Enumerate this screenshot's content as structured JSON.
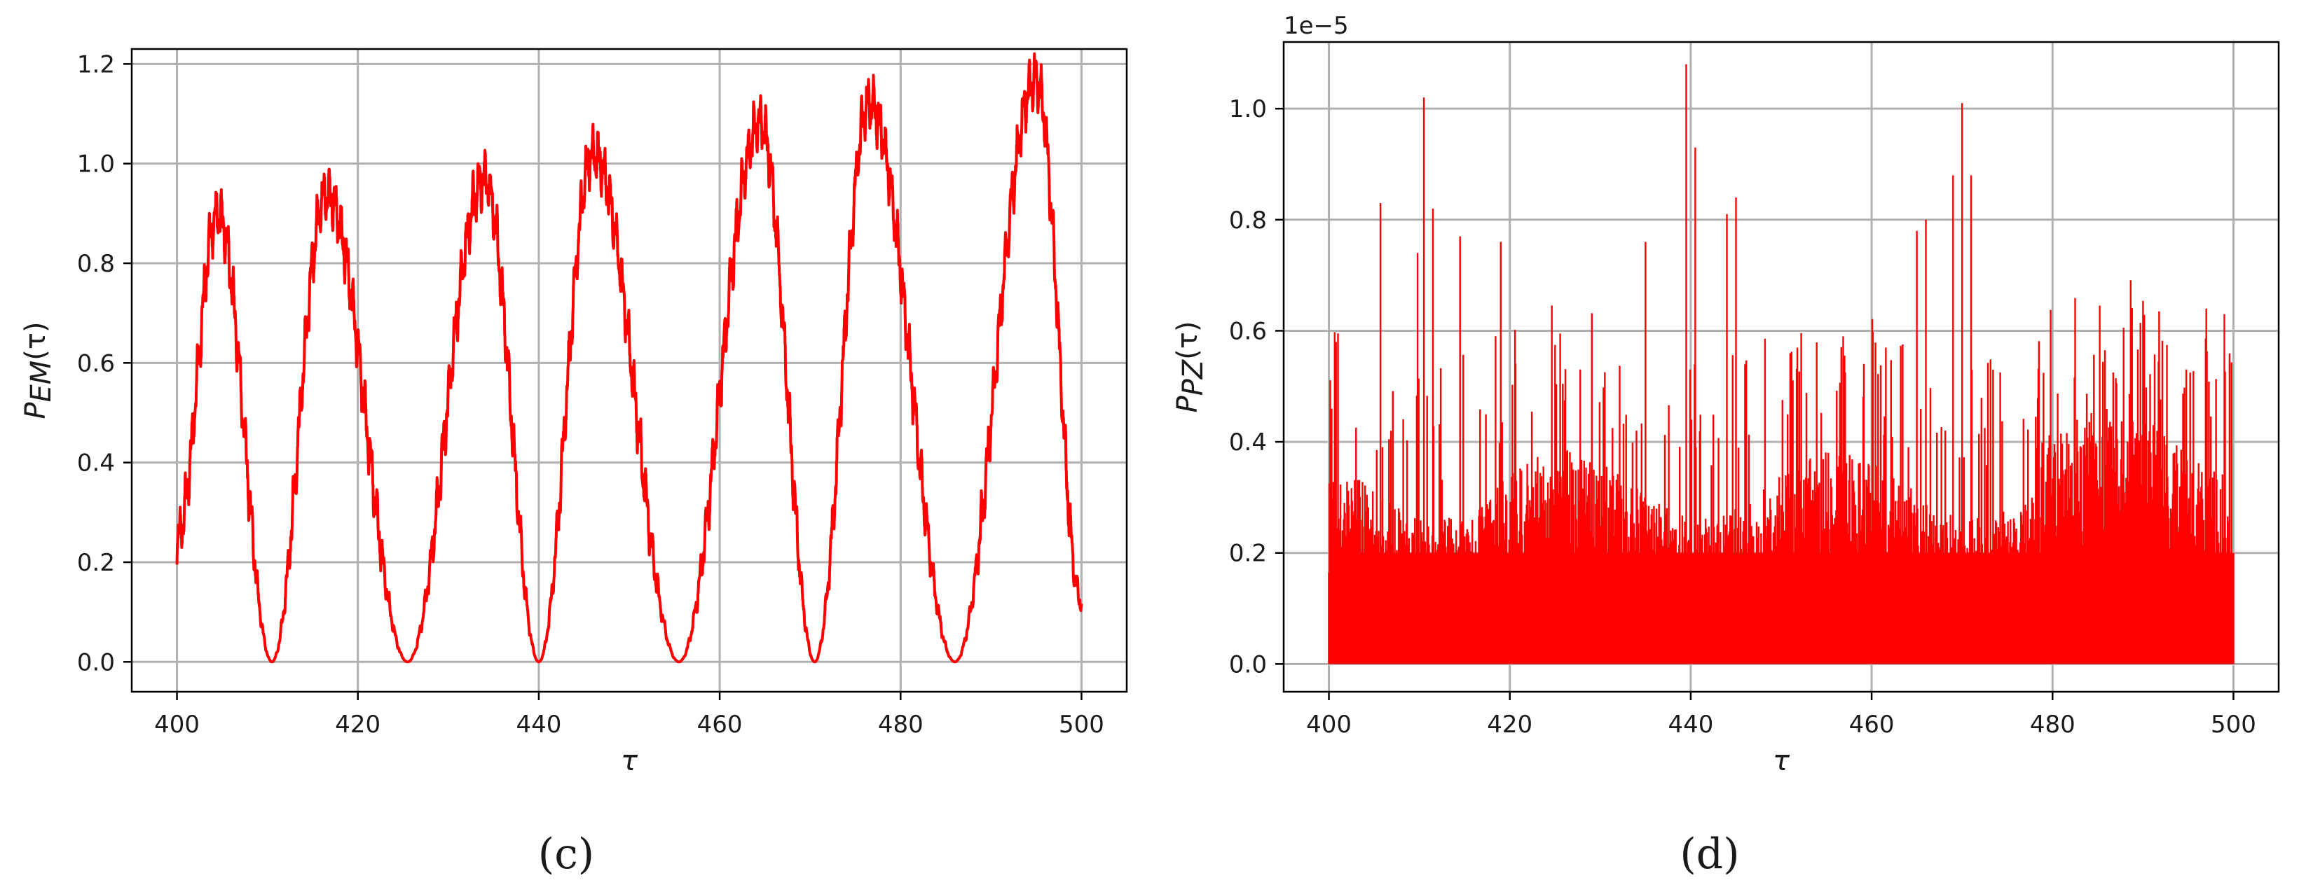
{
  "chart_data": [
    {
      "id": "c",
      "type": "line",
      "panel_label": "(c)",
      "xlabel": "τ",
      "ylabel": "P",
      "ylabel_sub": "EM",
      "ylabel_arg": "(τ)",
      "xlim": [
        395,
        505
      ],
      "ylim": [
        -0.06,
        1.23
      ],
      "xticks": [
        400,
        420,
        440,
        460,
        480,
        500
      ],
      "yticks": [
        0.0,
        0.2,
        0.4,
        0.6,
        0.8,
        1.0,
        1.2
      ],
      "xtick_labels": [
        "400",
        "420",
        "440",
        "460",
        "480",
        "500"
      ],
      "ytick_labels": [
        "0.0",
        "0.2",
        "0.4",
        "0.6",
        "0.8",
        "1.0",
        "1.2"
      ],
      "grid": true,
      "color": "#ff0000",
      "peaks": [
        {
          "x": 404.5,
          "y": 0.9
        },
        {
          "x": 416.5,
          "y": 0.94
        },
        {
          "x": 434.0,
          "y": 0.97
        },
        {
          "x": 446.0,
          "y": 1.02
        },
        {
          "x": 464.5,
          "y": 1.08
        },
        {
          "x": 476.5,
          "y": 1.12
        },
        {
          "x": 495.0,
          "y": 1.17
        }
      ],
      "minima": [
        {
          "x": 410.5,
          "y": 0.0
        },
        {
          "x": 425.5,
          "y": 0.0
        },
        {
          "x": 440.0,
          "y": 0.0
        },
        {
          "x": 455.5,
          "y": 0.0
        },
        {
          "x": 470.5,
          "y": 0.0
        },
        {
          "x": 486.0,
          "y": 0.0
        }
      ],
      "start": {
        "x": 400,
        "y": 0.25
      },
      "end": {
        "x": 500,
        "y": 0.12
      }
    },
    {
      "id": "d",
      "type": "line",
      "panel_label": "(d)",
      "xlabel": "τ",
      "ylabel": "P",
      "ylabel_sub": "PZ",
      "ylabel_arg": "(τ)",
      "exponent_label": "1e−5",
      "xlim": [
        395,
        505
      ],
      "ylim": [
        -0.05,
        1.12
      ],
      "xticks": [
        400,
        420,
        440,
        460,
        480,
        500
      ],
      "yticks": [
        0.0,
        0.2,
        0.4,
        0.6,
        0.8,
        1.0
      ],
      "xtick_labels": [
        "400",
        "420",
        "440",
        "460",
        "480",
        "500"
      ],
      "ytick_labels": [
        "0.0",
        "0.2",
        "0.4",
        "0.6",
        "0.8",
        "1.0"
      ],
      "grid": true,
      "color": "#ff0000",
      "notable_spikes": [
        {
          "x": 400.3,
          "y": 0.46
        },
        {
          "x": 405.7,
          "y": 0.83
        },
        {
          "x": 409.8,
          "y": 0.74
        },
        {
          "x": 410.5,
          "y": 1.02
        },
        {
          "x": 411.5,
          "y": 0.82
        },
        {
          "x": 414.5,
          "y": 0.77
        },
        {
          "x": 419.0,
          "y": 0.76
        },
        {
          "x": 435.0,
          "y": 0.76
        },
        {
          "x": 439.5,
          "y": 1.08
        },
        {
          "x": 440.5,
          "y": 0.93
        },
        {
          "x": 444.0,
          "y": 0.81
        },
        {
          "x": 445.0,
          "y": 0.84
        },
        {
          "x": 465.0,
          "y": 0.78
        },
        {
          "x": 466.0,
          "y": 0.8
        },
        {
          "x": 469.0,
          "y": 0.88
        },
        {
          "x": 470.0,
          "y": 1.01
        },
        {
          "x": 471.0,
          "y": 0.88
        },
        {
          "x": 497.0,
          "y": 0.64
        },
        {
          "x": 499.0,
          "y": 0.63
        }
      ]
    }
  ]
}
